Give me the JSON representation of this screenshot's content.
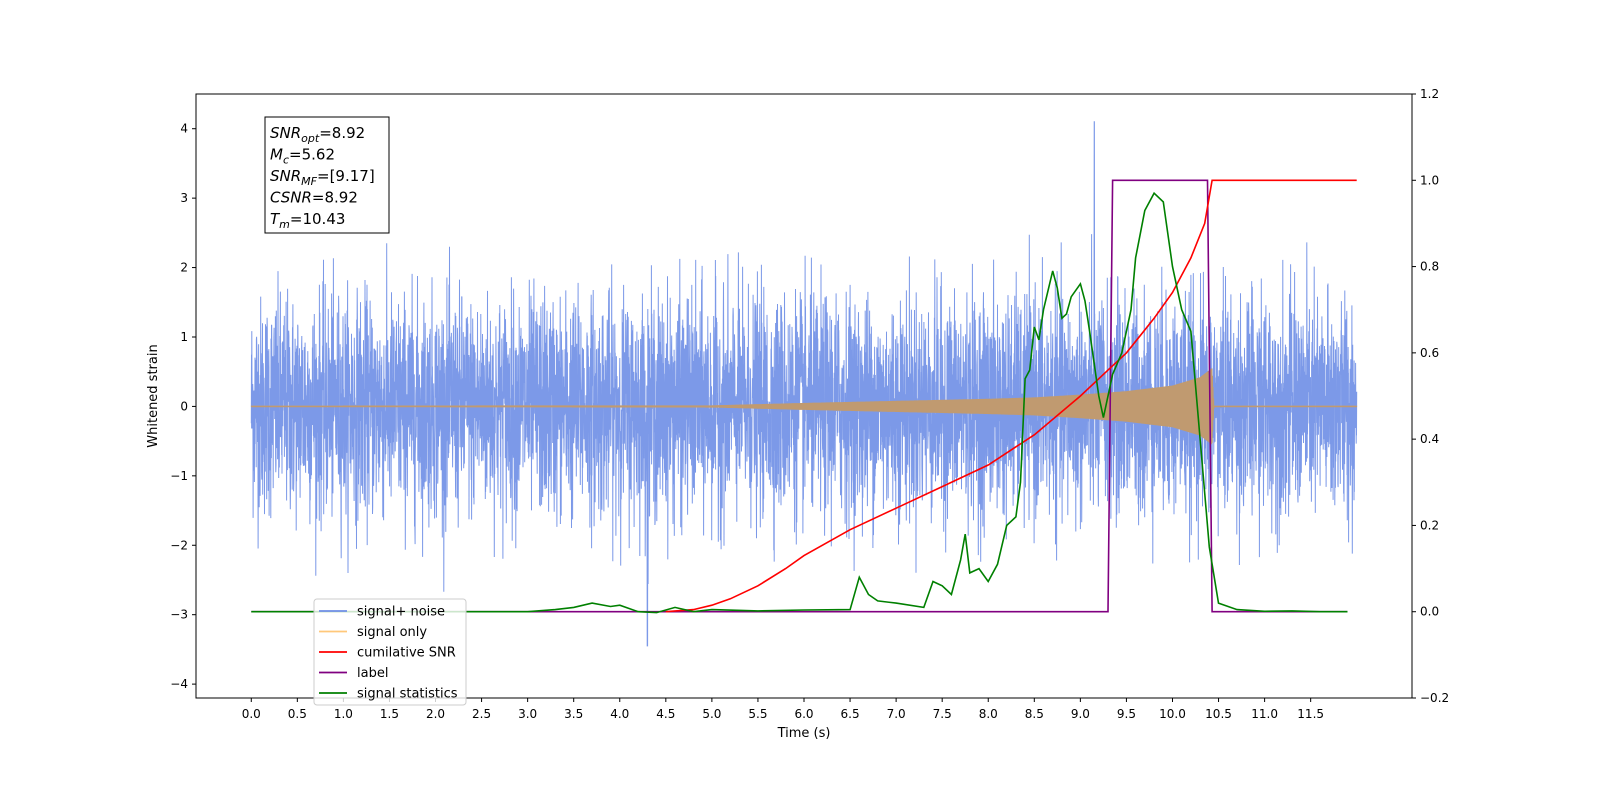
{
  "chart_data": {
    "type": "line",
    "xlabel": "Time (s)",
    "ylabel_left": "Whitened strain",
    "ylabel_right": "",
    "xlim": [
      -0.6,
      12.6
    ],
    "ylim_left": [
      -4.2,
      4.5
    ],
    "ylim_right": [
      -0.2,
      1.2
    ],
    "x_ticks": [
      "0.0",
      "0.5",
      "1.0",
      "1.5",
      "2.0",
      "2.5",
      "3.0",
      "3.5",
      "4.0",
      "4.5",
      "5.0",
      "5.5",
      "6.0",
      "6.5",
      "7.0",
      "7.5",
      "8.0",
      "8.5",
      "9.0",
      "9.5",
      "10.0",
      "10.5",
      "11.0",
      "11.5"
    ],
    "y_ticks_left": [
      "−4",
      "−3",
      "−2",
      "−1",
      "0",
      "1",
      "2",
      "3",
      "4"
    ],
    "y_ticks_right": [
      "−0.2",
      "0.0",
      "0.2",
      "0.4",
      "0.6",
      "0.8",
      "1.0",
      "1.2"
    ],
    "grid": false,
    "legend": {
      "placement": "lower-left",
      "entries": [
        {
          "label": "signal+ noise",
          "color": "#6e8ee6"
        },
        {
          "label": "signal only",
          "color": "#ffc87a"
        },
        {
          "label": "cumilative SNR",
          "color": "#ff0000"
        },
        {
          "label": "label",
          "color": "#800080"
        },
        {
          "label": "signal statistics",
          "color": "#008000"
        }
      ]
    },
    "annotation": {
      "lines": [
        {
          "sym": "SNR",
          "sub": "opt",
          "val": "=8.92"
        },
        {
          "sym": "M",
          "sub": "c",
          "val": "=5.62"
        },
        {
          "sym": "SNR",
          "sub": "MF",
          "val": "=[9.17]"
        },
        {
          "sym": "CSNR",
          "sub": "",
          "val": "=8.92"
        },
        {
          "sym": "T",
          "sub": "m",
          "val": "=10.43"
        }
      ]
    },
    "series": [
      {
        "name": "signal+ noise",
        "axis": "left",
        "color": "#6e8ee6",
        "x_range": [
          0.0,
          12.0
        ],
        "amplitude_envelope": {
          "typical": 2.1,
          "max_peak": 4.1,
          "max_peak_at": 9.15,
          "min_trough": -3.45,
          "min_trough_at": 4.3
        }
      },
      {
        "name": "signal only",
        "axis": "left",
        "color": "#ffc87a",
        "envelope": {
          "x": [
            0.0,
            5.0,
            6.0,
            7.0,
            8.0,
            8.5,
            9.0,
            9.5,
            10.0,
            10.3,
            10.43,
            10.45,
            12.0
          ],
          "amp": [
            0.01,
            0.015,
            0.05,
            0.08,
            0.11,
            0.13,
            0.17,
            0.22,
            0.3,
            0.42,
            0.55,
            0.01,
            0.01
          ]
        }
      },
      {
        "name": "cumilative SNR",
        "axis": "right",
        "color": "#ff0000",
        "x": [
          4.5,
          4.8,
          5.0,
          5.2,
          5.5,
          5.8,
          6.0,
          6.5,
          7.0,
          7.5,
          8.0,
          8.5,
          9.0,
          9.3,
          9.5,
          9.8,
          10.0,
          10.2,
          10.35,
          10.43,
          10.45,
          12.0
        ],
        "y": [
          0.0,
          0.005,
          0.015,
          0.03,
          0.06,
          0.1,
          0.13,
          0.19,
          0.24,
          0.29,
          0.34,
          0.41,
          0.5,
          0.56,
          0.6,
          0.68,
          0.74,
          0.82,
          0.9,
          1.0,
          1.0,
          1.0
        ]
      },
      {
        "name": "label",
        "axis": "right",
        "color": "#800080",
        "x": [
          0.0,
          9.3,
          9.35,
          10.38,
          10.43,
          11.9
        ],
        "y": [
          0.0,
          0.0,
          1.0,
          1.0,
          0.0,
          0.0
        ]
      },
      {
        "name": "signal statistics",
        "axis": "right",
        "color": "#008000",
        "x": [
          0.0,
          3.0,
          3.3,
          3.5,
          3.7,
          3.9,
          4.0,
          4.2,
          4.4,
          4.6,
          4.8,
          5.0,
          5.5,
          6.0,
          6.5,
          6.6,
          6.7,
          6.8,
          7.0,
          7.3,
          7.4,
          7.5,
          7.6,
          7.7,
          7.75,
          7.8,
          7.9,
          8.0,
          8.1,
          8.2,
          8.3,
          8.35,
          8.4,
          8.45,
          8.5,
          8.55,
          8.6,
          8.7,
          8.75,
          8.8,
          8.85,
          8.9,
          9.0,
          9.05,
          9.1,
          9.2,
          9.25,
          9.35,
          9.45,
          9.55,
          9.6,
          9.7,
          9.8,
          9.9,
          10.0,
          10.1,
          10.2,
          10.3,
          10.4,
          10.5,
          10.7,
          11.0,
          11.3,
          11.6,
          11.9
        ],
        "y": [
          0.0,
          0.0,
          0.005,
          0.01,
          0.02,
          0.012,
          0.015,
          0.0,
          -0.002,
          0.01,
          0.0,
          0.005,
          0.002,
          0.004,
          0.005,
          0.08,
          0.04,
          0.025,
          0.02,
          0.01,
          0.07,
          0.06,
          0.04,
          0.12,
          0.18,
          0.09,
          0.1,
          0.07,
          0.11,
          0.2,
          0.22,
          0.3,
          0.54,
          0.56,
          0.66,
          0.63,
          0.7,
          0.79,
          0.75,
          0.68,
          0.69,
          0.73,
          0.76,
          0.72,
          0.65,
          0.5,
          0.45,
          0.55,
          0.6,
          0.7,
          0.82,
          0.93,
          0.97,
          0.95,
          0.8,
          0.7,
          0.65,
          0.4,
          0.15,
          0.02,
          0.005,
          0.001,
          0.002,
          0.0,
          0.0
        ]
      }
    ]
  }
}
